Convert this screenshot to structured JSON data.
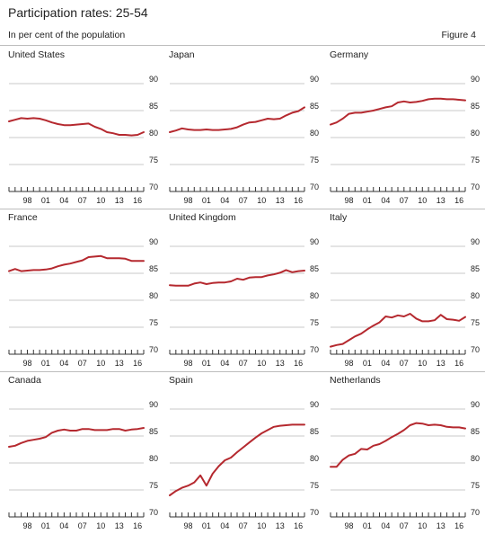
{
  "header": {
    "title": "Participation rates: 25-54",
    "subtitle": "In per cent of the population",
    "figure": "Figure 4"
  },
  "colors": {
    "line": "#b5292f",
    "grid": "#c8c8c8",
    "axis": "#333333",
    "rule": "#bdbdbd"
  },
  "chart_data": [
    {
      "type": "line",
      "title": "United States",
      "x_tick_labels": [
        "98",
        "01",
        "04",
        "07",
        "10",
        "13",
        "16"
      ],
      "y_tick_labels": [
        "90",
        "85",
        "80",
        "75",
        "70"
      ],
      "ylim": [
        70,
        92
      ],
      "xlim": [
        1995,
        2017
      ],
      "grid": true,
      "x": [
        1995,
        1996,
        1997,
        1998,
        1999,
        2000,
        2001,
        2002,
        2003,
        2004,
        2005,
        2006,
        2007,
        2008,
        2009,
        2010,
        2011,
        2012,
        2013,
        2014,
        2015,
        2016,
        2017
      ],
      "values": [
        83.0,
        83.3,
        83.6,
        83.5,
        83.6,
        83.5,
        83.2,
        82.8,
        82.5,
        82.3,
        82.3,
        82.4,
        82.5,
        82.6,
        82.0,
        81.6,
        81.0,
        80.8,
        80.5,
        80.5,
        80.4,
        80.5,
        81.0
      ]
    },
    {
      "type": "line",
      "title": "Japan",
      "x_tick_labels": [
        "98",
        "01",
        "04",
        "07",
        "10",
        "13",
        "16"
      ],
      "y_tick_labels": [
        "90",
        "85",
        "80",
        "75",
        "70"
      ],
      "ylim": [
        70,
        92
      ],
      "xlim": [
        1995,
        2017
      ],
      "grid": true,
      "x": [
        1995,
        1996,
        1997,
        1998,
        1999,
        2000,
        2001,
        2002,
        2003,
        2004,
        2005,
        2006,
        2007,
        2008,
        2009,
        2010,
        2011,
        2012,
        2013,
        2014,
        2015,
        2016,
        2017
      ],
      "values": [
        81.0,
        81.3,
        81.7,
        81.5,
        81.4,
        81.4,
        81.5,
        81.4,
        81.4,
        81.5,
        81.6,
        81.9,
        82.4,
        82.8,
        82.9,
        83.2,
        83.5,
        83.4,
        83.5,
        84.1,
        84.6,
        84.9,
        85.6
      ]
    },
    {
      "type": "line",
      "title": "Germany",
      "x_tick_labels": [
        "98",
        "01",
        "04",
        "07",
        "10",
        "13",
        "16"
      ],
      "y_tick_labels": [
        "90",
        "85",
        "80",
        "75",
        "70"
      ],
      "ylim": [
        70,
        92
      ],
      "xlim": [
        1995,
        2017
      ],
      "grid": true,
      "x": [
        1995,
        1996,
        1997,
        1998,
        1999,
        2000,
        2001,
        2002,
        2003,
        2004,
        2005,
        2006,
        2007,
        2008,
        2009,
        2010,
        2011,
        2012,
        2013,
        2014,
        2015,
        2016,
        2017
      ],
      "values": [
        82.4,
        82.8,
        83.5,
        84.4,
        84.6,
        84.6,
        84.8,
        85.0,
        85.3,
        85.6,
        85.8,
        86.5,
        86.7,
        86.5,
        86.6,
        86.8,
        87.1,
        87.2,
        87.2,
        87.1,
        87.1,
        87.0,
        86.9
      ]
    },
    {
      "type": "line",
      "title": "France",
      "x_tick_labels": [
        "98",
        "01",
        "04",
        "07",
        "10",
        "13",
        "16"
      ],
      "y_tick_labels": [
        "90",
        "85",
        "80",
        "75",
        "70"
      ],
      "ylim": [
        70,
        92
      ],
      "xlim": [
        1995,
        2017
      ],
      "grid": true,
      "x": [
        1995,
        1996,
        1997,
        1998,
        1999,
        2000,
        2001,
        2002,
        2003,
        2004,
        2005,
        2006,
        2007,
        2008,
        2009,
        2010,
        2011,
        2012,
        2013,
        2014,
        2015,
        2016,
        2017
      ],
      "values": [
        85.4,
        85.8,
        85.4,
        85.5,
        85.6,
        85.6,
        85.7,
        85.9,
        86.3,
        86.6,
        86.8,
        87.1,
        87.4,
        88.0,
        88.1,
        88.2,
        87.8,
        87.8,
        87.8,
        87.7,
        87.3,
        87.3,
        87.3
      ]
    },
    {
      "type": "line",
      "title": "United Kingdom",
      "x_tick_labels": [
        "98",
        "01",
        "04",
        "07",
        "10",
        "13",
        "16"
      ],
      "y_tick_labels": [
        "90",
        "85",
        "80",
        "75",
        "70"
      ],
      "ylim": [
        70,
        92
      ],
      "xlim": [
        1995,
        2017
      ],
      "grid": true,
      "x": [
        1995,
        1996,
        1997,
        1998,
        1999,
        2000,
        2001,
        2002,
        2003,
        2004,
        2005,
        2006,
        2007,
        2008,
        2009,
        2010,
        2011,
        2012,
        2013,
        2014,
        2015,
        2016,
        2017
      ],
      "values": [
        82.8,
        82.7,
        82.7,
        82.7,
        83.1,
        83.3,
        83.0,
        83.2,
        83.3,
        83.3,
        83.5,
        84.0,
        83.8,
        84.2,
        84.3,
        84.3,
        84.6,
        84.8,
        85.1,
        85.6,
        85.2,
        85.4,
        85.5
      ]
    },
    {
      "type": "line",
      "title": "Italy",
      "x_tick_labels": [
        "98",
        "01",
        "04",
        "07",
        "10",
        "13",
        "16"
      ],
      "y_tick_labels": [
        "90",
        "85",
        "80",
        "75",
        "70"
      ],
      "ylim": [
        70,
        92
      ],
      "xlim": [
        1995,
        2017
      ],
      "grid": true,
      "x": [
        1995,
        1996,
        1997,
        1998,
        1999,
        2000,
        2001,
        2002,
        2003,
        2004,
        2005,
        2006,
        2007,
        2008,
        2009,
        2010,
        2011,
        2012,
        2013,
        2014,
        2015,
        2016,
        2017
      ],
      "values": [
        71.4,
        71.7,
        71.9,
        72.6,
        73.3,
        73.8,
        74.6,
        75.3,
        75.9,
        77.0,
        76.8,
        77.2,
        77.0,
        77.5,
        76.6,
        76.1,
        76.1,
        76.3,
        77.3,
        76.5,
        76.4,
        76.2,
        76.9
      ]
    },
    {
      "type": "line",
      "title": "Canada",
      "x_tick_labels": [
        "98",
        "01",
        "04",
        "07",
        "10",
        "13",
        "16"
      ],
      "y_tick_labels": [
        "90",
        "85",
        "80",
        "75",
        "70"
      ],
      "ylim": [
        70,
        92
      ],
      "xlim": [
        1995,
        2017
      ],
      "grid": true,
      "x": [
        1995,
        1996,
        1997,
        1998,
        1999,
        2000,
        2001,
        2002,
        2003,
        2004,
        2005,
        2006,
        2007,
        2008,
        2009,
        2010,
        2011,
        2012,
        2013,
        2014,
        2015,
        2016,
        2017
      ],
      "values": [
        83.0,
        83.2,
        83.7,
        84.1,
        84.3,
        84.5,
        84.8,
        85.6,
        86.0,
        86.2,
        86.0,
        86.0,
        86.3,
        86.3,
        86.1,
        86.1,
        86.1,
        86.3,
        86.3,
        86.0,
        86.2,
        86.3,
        86.5
      ]
    },
    {
      "type": "line",
      "title": "Spain",
      "x_tick_labels": [
        "98",
        "01",
        "04",
        "07",
        "10",
        "13",
        "16"
      ],
      "y_tick_labels": [
        "90",
        "85",
        "80",
        "75",
        "70"
      ],
      "ylim": [
        70,
        92
      ],
      "xlim": [
        1995,
        2017
      ],
      "grid": true,
      "x": [
        1995,
        1996,
        1997,
        1998,
        1999,
        2000,
        2001,
        2002,
        2003,
        2004,
        2005,
        2006,
        2007,
        2008,
        2009,
        2010,
        2011,
        2012,
        2013,
        2014,
        2015,
        2016,
        2017
      ],
      "values": [
        74.0,
        74.8,
        75.4,
        75.8,
        76.4,
        77.7,
        75.8,
        78.0,
        79.4,
        80.5,
        81.0,
        82.0,
        82.9,
        83.8,
        84.7,
        85.5,
        86.1,
        86.7,
        86.9,
        87.0,
        87.1,
        87.1,
        87.1
      ]
    },
    {
      "type": "line",
      "title": "Netherlands",
      "x_tick_labels": [
        "98",
        "01",
        "04",
        "07",
        "10",
        "13",
        "16"
      ],
      "y_tick_labels": [
        "90",
        "85",
        "80",
        "75",
        "70"
      ],
      "ylim": [
        70,
        92
      ],
      "xlim": [
        1995,
        2017
      ],
      "grid": true,
      "x": [
        1995,
        1996,
        1997,
        1998,
        1999,
        2000,
        2001,
        2002,
        2003,
        2004,
        2005,
        2006,
        2007,
        2008,
        2009,
        2010,
        2011,
        2012,
        2013,
        2014,
        2015,
        2016,
        2017
      ],
      "values": [
        79.3,
        79.3,
        80.6,
        81.4,
        81.7,
        82.6,
        82.5,
        83.2,
        83.5,
        84.1,
        84.8,
        85.4,
        86.1,
        87.0,
        87.4,
        87.3,
        87.0,
        87.1,
        87.0,
        86.7,
        86.6,
        86.6,
        86.4
      ]
    }
  ]
}
